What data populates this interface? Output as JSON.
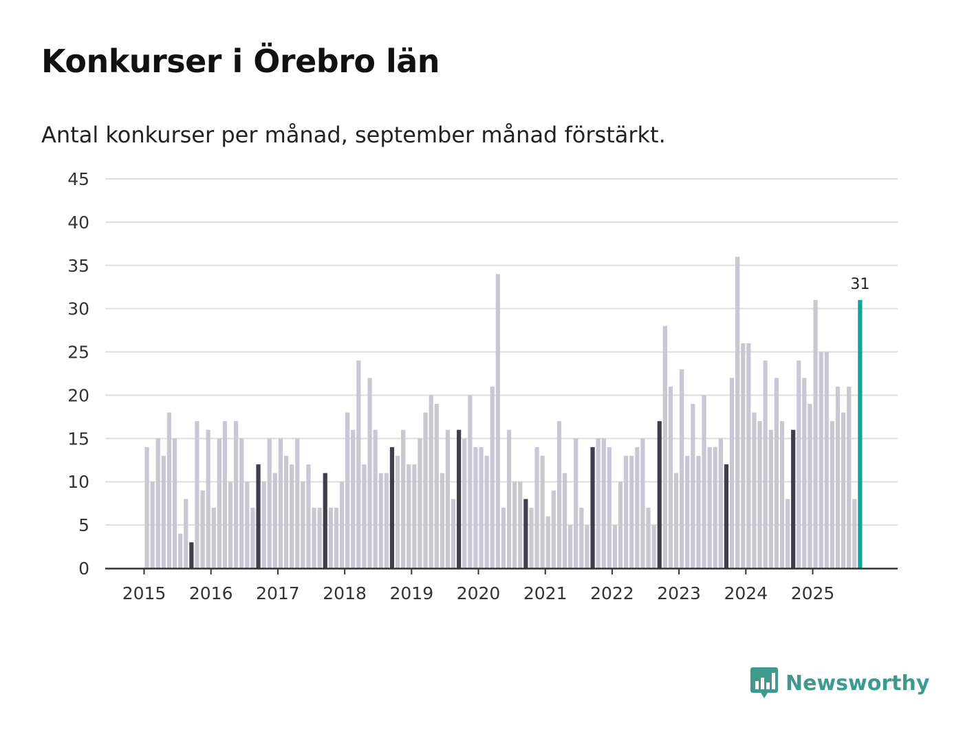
{
  "title": "Konkurser i Örebro län",
  "subtitle": "Antal konkurser per månad, september månad förstärkt.",
  "brand": {
    "name": "Newsworthy",
    "icon": "newsworthy-logo-icon"
  },
  "colors": {
    "bar": "#c8c7d3",
    "highlight": "#3f3e4c",
    "latest": "#12a597",
    "grid": "#dddddd",
    "axis": "#333333"
  },
  "chart_data": {
    "type": "bar",
    "title": "Konkurser i Örebro län",
    "subtitle": "Antal konkurser per månad, september månad förstärkt.",
    "xlabel": "",
    "ylabel": "",
    "ylim": [
      0,
      45
    ],
    "yticks": [
      0,
      5,
      10,
      15,
      20,
      25,
      30,
      35,
      40,
      45
    ],
    "xtick_labels": [
      "2015",
      "2016",
      "2017",
      "2018",
      "2019",
      "2020",
      "2021",
      "2022",
      "2023",
      "2024",
      "2025"
    ],
    "start": "2015-01",
    "end": "2025-09",
    "highlight_month": "september",
    "latest_label": "31",
    "values": [
      14,
      10,
      15,
      13,
      18,
      15,
      4,
      8,
      3,
      17,
      9,
      16,
      7,
      15,
      17,
      10,
      17,
      15,
      10,
      7,
      12,
      10,
      15,
      11,
      15,
      13,
      12,
      15,
      10,
      12,
      7,
      7,
      11,
      7,
      7,
      10,
      18,
      16,
      24,
      12,
      22,
      16,
      11,
      11,
      14,
      13,
      16,
      12,
      12,
      15,
      18,
      20,
      19,
      11,
      16,
      8,
      16,
      15,
      20,
      14,
      14,
      13,
      21,
      34,
      7,
      16,
      10,
      10,
      8,
      7,
      14,
      13,
      6,
      9,
      17,
      11,
      5,
      15,
      7,
      5,
      14,
      15,
      15,
      14,
      5,
      10,
      13,
      13,
      14,
      15,
      7,
      5,
      17,
      28,
      21,
      11,
      23,
      13,
      19,
      13,
      20,
      14,
      14,
      15,
      12,
      22,
      36,
      26,
      26,
      18,
      17,
      24,
      16,
      22,
      17,
      8,
      16,
      24,
      22,
      19,
      31,
      25,
      25,
      17,
      21,
      18,
      21,
      8,
      31
    ]
  }
}
